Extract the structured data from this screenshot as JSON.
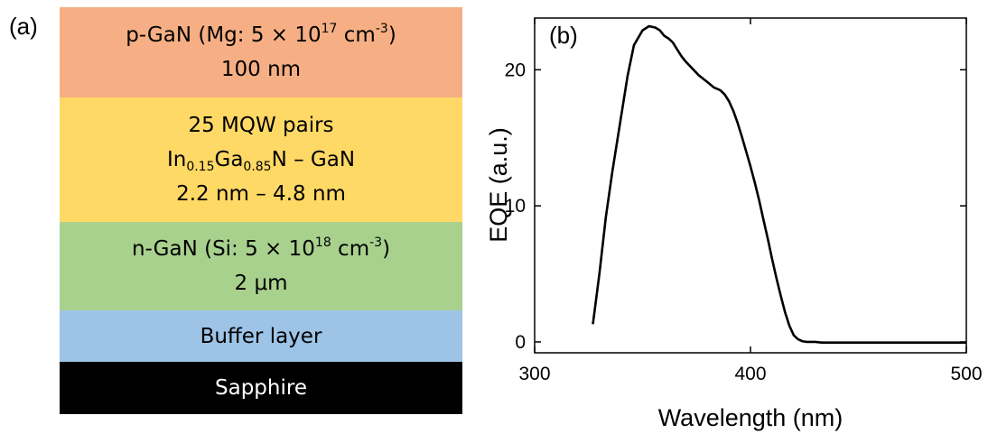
{
  "figure": {
    "panel_a": {
      "label": "(a)",
      "layers": [
        {
          "name": "p-GaN (Mg: 5 × 10",
          "sup": "17",
          "unit": " cm",
          "unit_sup": "-3",
          "tail": ")",
          "line2": "100 nm",
          "color": "#F6AF84"
        },
        {
          "line1": "25 MQW pairs",
          "in": "In",
          "in_sub": "0.15",
          "ga": "Ga",
          "ga_sub": "0.85",
          "rest": "N – GaN",
          "line3": "2.2 nm – 4.8 nm",
          "color": "#FFD966"
        },
        {
          "name": "n-GaN (Si: 5 × 10",
          "sup": "18",
          "unit": " cm",
          "unit_sup": "-3",
          "tail": ")",
          "line2": "2 μm",
          "color": "#A9D18E"
        },
        {
          "label": "Buffer layer",
          "color": "#9DC3E6"
        },
        {
          "label": "Sapphire",
          "color": "#000000",
          "text_color": "#FFFFFF"
        }
      ]
    }
  },
  "chart_data": {
    "type": "line",
    "panel_label": "(b)",
    "xlabel": "Wavelength (nm)",
    "ylabel": "EQE (a.u.)",
    "xlim": [
      300,
      500
    ],
    "ylim": [
      -0.8,
      23.8
    ],
    "xticks": [
      300,
      400,
      500
    ],
    "yticks": [
      0,
      10,
      20
    ],
    "grid": false,
    "series": [
      {
        "color": "#000000",
        "x": [
          327,
          330,
          333,
          336,
          340,
          343,
          346,
          350,
          353,
          356,
          358,
          360,
          362,
          364,
          366,
          368,
          370,
          373,
          376,
          380,
          383,
          386,
          388,
          390,
          392,
          394,
          396,
          398,
          400,
          402,
          404,
          406,
          408,
          410,
          412,
          414,
          416,
          418,
          420,
          422,
          424,
          426,
          428,
          430,
          433,
          436,
          440,
          450,
          460,
          470,
          480,
          490,
          500
        ],
        "y": [
          1.3,
          5.0,
          9.2,
          12.5,
          16.5,
          19.5,
          21.8,
          22.9,
          23.2,
          23.1,
          22.9,
          22.5,
          22.3,
          22.0,
          21.5,
          21.0,
          20.6,
          20.1,
          19.6,
          19.1,
          18.7,
          18.5,
          18.2,
          17.7,
          17.0,
          16.1,
          15.1,
          14.0,
          12.9,
          11.7,
          10.4,
          9.0,
          7.6,
          6.1,
          4.7,
          3.4,
          2.2,
          1.2,
          0.5,
          0.2,
          0.05,
          0.0,
          0.0,
          0.0,
          -0.05,
          -0.05,
          -0.05,
          -0.05,
          -0.05,
          -0.05,
          -0.05,
          -0.05,
          -0.05
        ]
      }
    ]
  }
}
